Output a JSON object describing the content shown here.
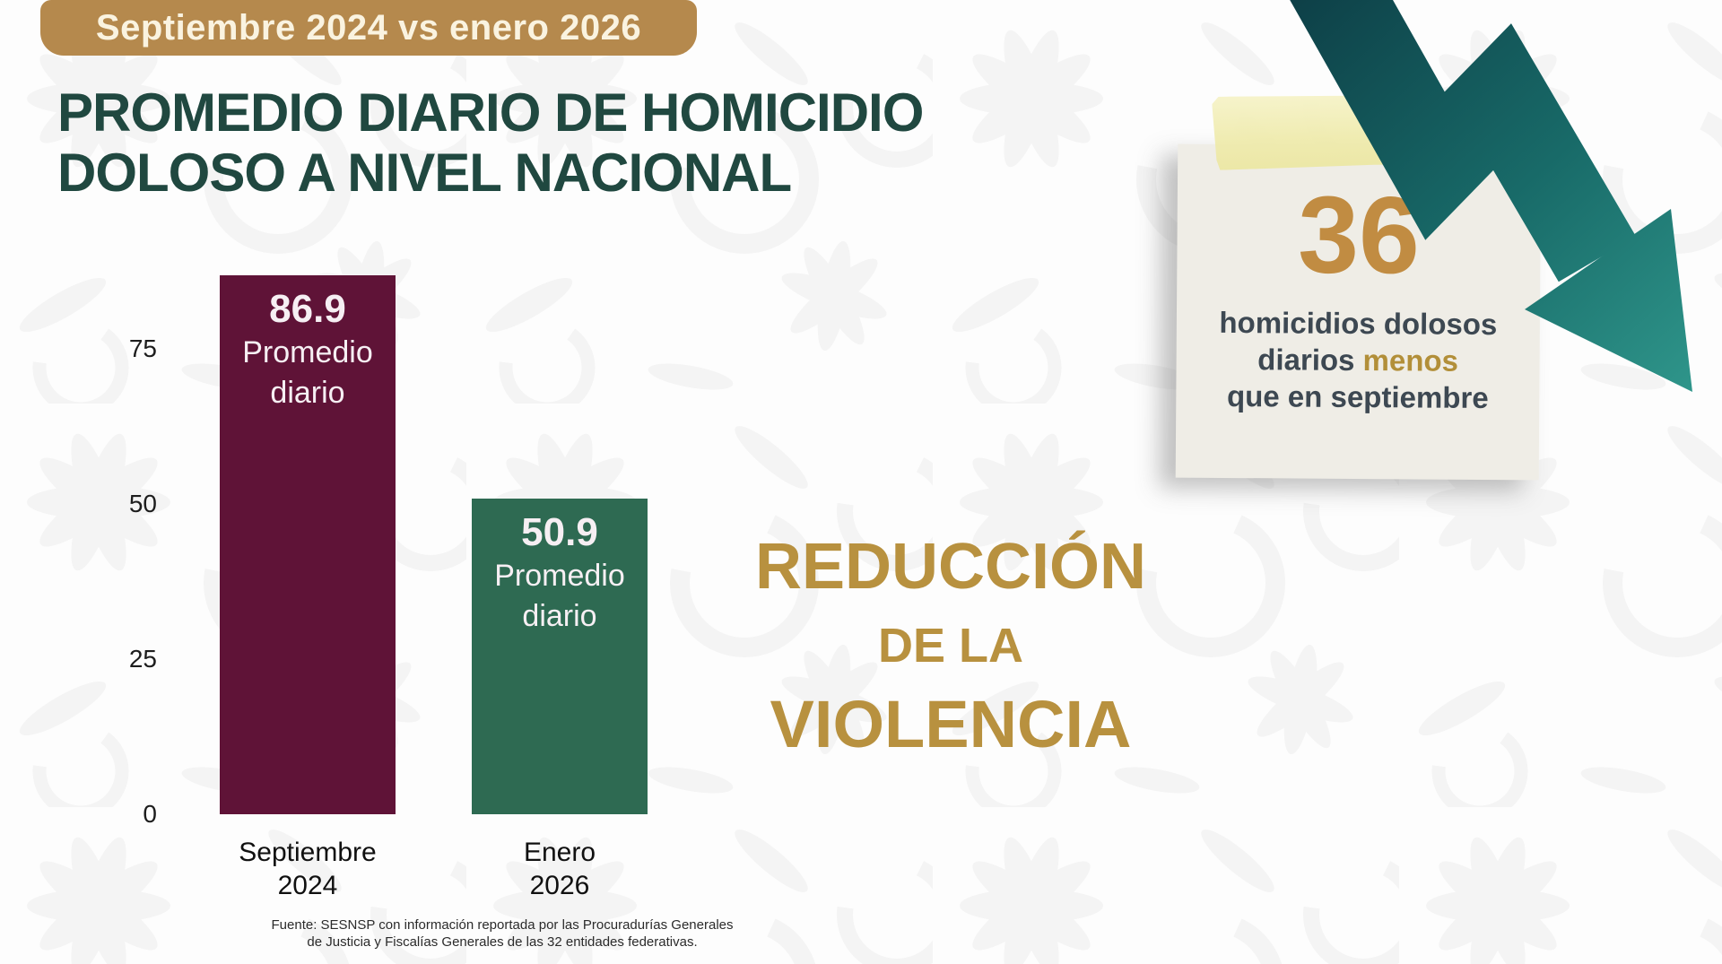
{
  "badge": {
    "label": "Septiembre 2024 vs enero 2026"
  },
  "title": {
    "line1": "PROMEDIO DIARIO DE HOMICIDIO",
    "line2": "DOLOSO A NIVEL NACIONAL"
  },
  "chart_data": {
    "type": "bar",
    "title": "Promedio diario de homicidio doloso a nivel nacional",
    "categories": [
      "Septiembre\n2024",
      "Enero\n2026"
    ],
    "values": [
      86.9,
      50.9
    ],
    "value_labels": [
      "86.9",
      "50.9"
    ],
    "bar_sublabels": [
      "Promedio diario",
      "Promedio diario"
    ],
    "bar_colors": [
      "#5F1337",
      "#2E6A52"
    ],
    "yticks": [
      0,
      25,
      50,
      75
    ],
    "ylim": [
      0,
      95
    ],
    "grid": false,
    "legend": false,
    "xlabel": "",
    "ylabel": ""
  },
  "reduction": {
    "line1": "REDUCCIÓN",
    "line2": "DE LA",
    "line3": "VIOLENCIA"
  },
  "note": {
    "number": "36",
    "line1": "homicidios dolosos",
    "line2_before": "diarios",
    "line2_highlight": "menos",
    "line3": "que en septiembre"
  },
  "source": {
    "line1": "Fuente: SESNSP con información reportada por las Procuradurías Generales",
    "line2": "de Justicia y Fiscalías Generales de las 32 entidades federativas."
  },
  "icons": {
    "arrow": "trend-down-arrow"
  },
  "colors": {
    "badge_bg": "#B5894D",
    "badge_text": "#FAF3E0",
    "title_text": "#204840",
    "bar_2024": "#5F1337",
    "bar_2026": "#2E6A52",
    "gold_headline": "#B8913F",
    "note_paper": "#EFEDE6",
    "note_number": "#C18C42",
    "note_text": "#3D4852",
    "note_highlight": "#B28F39",
    "tape": "#F2EFB9",
    "arrow_dark": "#0C3A43",
    "arrow_light": "#2F968B",
    "background": "#FDFDFD",
    "watermark": "#F2F2F2"
  }
}
